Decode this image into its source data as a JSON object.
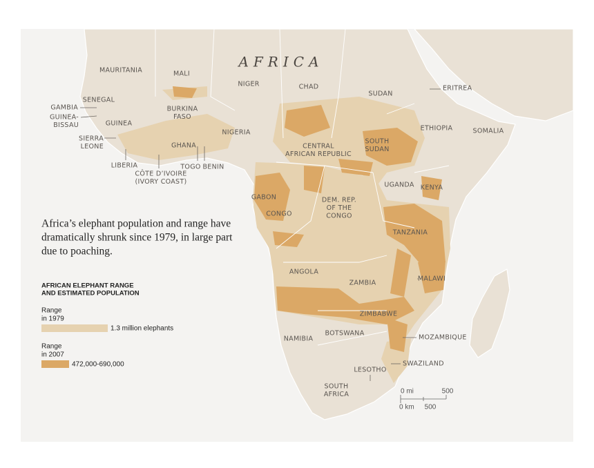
{
  "map": {
    "title": "AFRICA",
    "countries": [
      {
        "lines": [
          "MAURITANIA"
        ]
      },
      {
        "lines": [
          "MALI"
        ]
      },
      {
        "lines": [
          "NIGER"
        ]
      },
      {
        "lines": [
          "CHAD"
        ]
      },
      {
        "lines": [
          "SUDAN"
        ]
      },
      {
        "lines": [
          "ERITREA"
        ]
      },
      {
        "lines": [
          "SENEGAL"
        ]
      },
      {
        "lines": [
          "GAMBIA"
        ]
      },
      {
        "lines": [
          "GUINEA-",
          "BISSAU"
        ]
      },
      {
        "lines": [
          "GUINEA"
        ]
      },
      {
        "lines": [
          "BURKINA",
          "FASO"
        ]
      },
      {
        "lines": [
          "NIGERIA"
        ]
      },
      {
        "lines": [
          "ETHIOPIA"
        ]
      },
      {
        "lines": [
          "SOMALIA"
        ]
      },
      {
        "lines": [
          "SIERRA",
          "LEONE"
        ]
      },
      {
        "lines": [
          "GHANA"
        ]
      },
      {
        "lines": [
          "CENTRAL",
          "AFRICAN REPUBLIC"
        ]
      },
      {
        "lines": [
          "SOUTH",
          "SUDAN"
        ]
      },
      {
        "lines": [
          "LIBERIA"
        ]
      },
      {
        "lines": [
          "TOGO"
        ]
      },
      {
        "lines": [
          "BENIN"
        ]
      },
      {
        "lines": [
          "CÔTE D’IVOIRE",
          "(IVORY COAST)"
        ]
      },
      {
        "lines": [
          "UGANDA"
        ]
      },
      {
        "lines": [
          "KENYA"
        ]
      },
      {
        "lines": [
          "GABON"
        ]
      },
      {
        "lines": [
          "DEM. REP.",
          "OF THE",
          "CONGO"
        ]
      },
      {
        "lines": [
          "CONGO"
        ]
      },
      {
        "lines": [
          "TANZANIA"
        ]
      },
      {
        "lines": [
          "ANGOLA"
        ]
      },
      {
        "lines": [
          "MALAWI"
        ]
      },
      {
        "lines": [
          "ZAMBIA"
        ]
      },
      {
        "lines": [
          "ZIMBABWE"
        ]
      },
      {
        "lines": [
          "BOTSWANA"
        ]
      },
      {
        "lines": [
          "NAMIBIA"
        ]
      },
      {
        "lines": [
          "MOZAMBIQUE"
        ]
      },
      {
        "lines": [
          "SWAZILAND"
        ]
      },
      {
        "lines": [
          "LESOTHO"
        ]
      },
      {
        "lines": [
          "SOUTH",
          "AFRICA"
        ]
      }
    ],
    "description": [
      "Africa’s elephant population and range have",
      "dramatically shrunk since 1979, in large part",
      "due to poaching."
    ],
    "legend": {
      "title": [
        "AFRICAN ELEPHANT RANGE",
        "AND ESTIMATED POPULATION"
      ],
      "items": [
        {
          "label": [
            "Range",
            "in 1979"
          ],
          "population": "1.3 million elephants"
        },
        {
          "label": [
            "Range",
            "in 2007"
          ],
          "population": "472,000-690,000"
        }
      ]
    },
    "scale": {
      "mi": [
        "0 mi",
        "500"
      ],
      "km": [
        "0 km",
        "500"
      ]
    }
  }
}
